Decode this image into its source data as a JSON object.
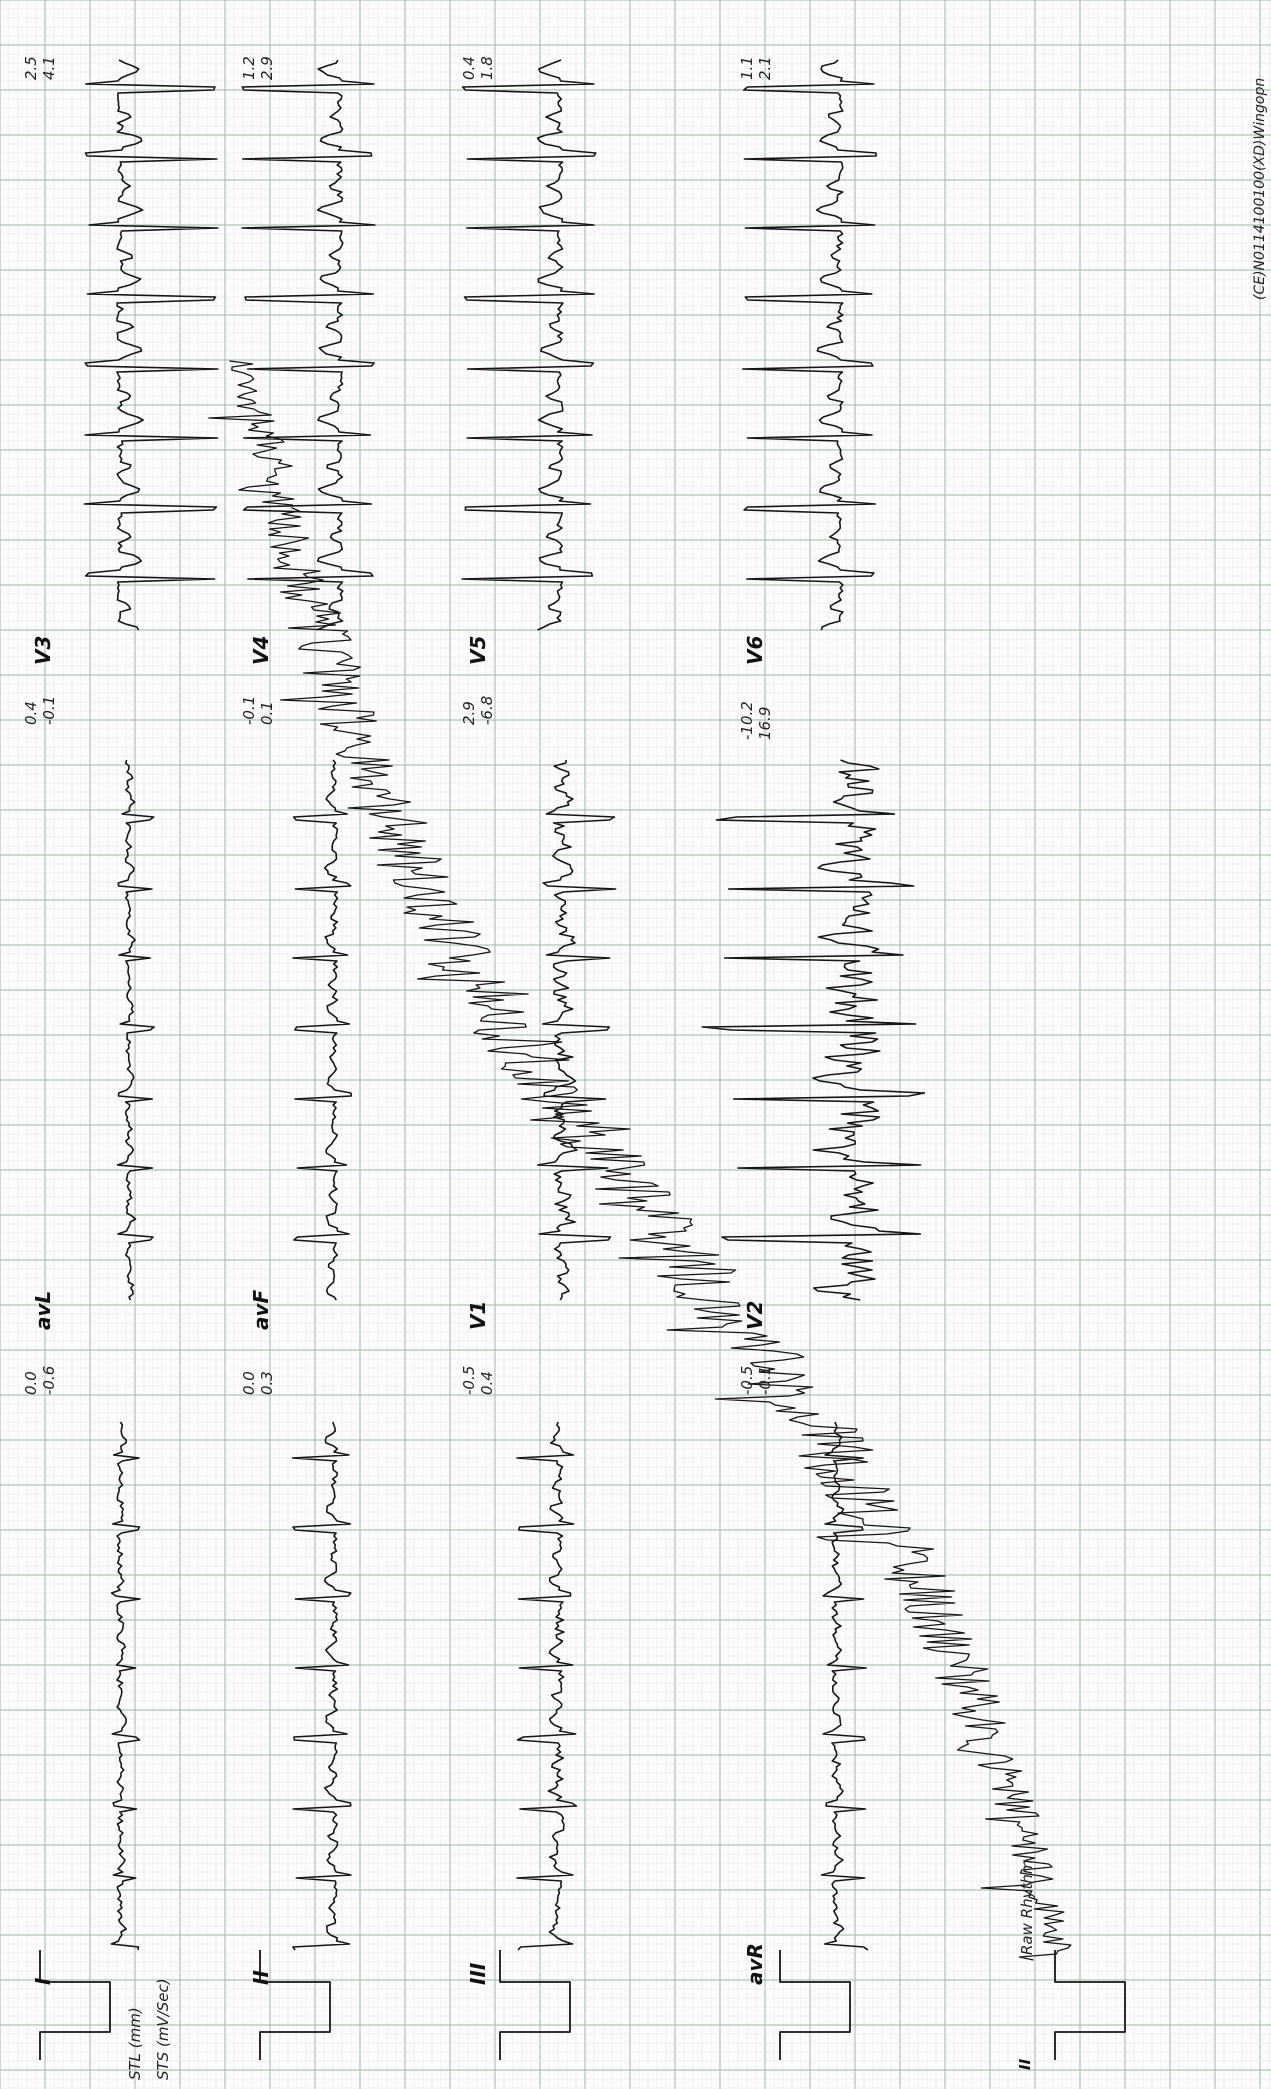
{
  "leads": [
    {
      "id": "I",
      "label": "I",
      "st": [
        "",
        ""
      ]
    },
    {
      "id": "avL",
      "label": "avL",
      "st": [
        "0.0",
        "-0.6"
      ]
    },
    {
      "id": "V3",
      "label": "V3",
      "st": [
        "0.4",
        "-0.1"
      ]
    },
    {
      "id": "II",
      "label": "II",
      "st": [
        "",
        ""
      ]
    },
    {
      "id": "avF",
      "label": "avF",
      "st": [
        "0.0",
        "0.3"
      ]
    },
    {
      "id": "V4",
      "label": "V4",
      "st": [
        "-0.1",
        "0.1"
      ]
    },
    {
      "id": "III",
      "label": "III",
      "st": [
        "",
        ""
      ]
    },
    {
      "id": "V1",
      "label": "V1",
      "st": [
        "-0.5",
        "0.4"
      ]
    },
    {
      "id": "V5",
      "label": "V5",
      "st": [
        "2.9",
        "-6.8"
      ]
    },
    {
      "id": "avR",
      "label": "avR",
      "st": [
        "",
        ""
      ]
    },
    {
      "id": "V2",
      "label": "V2",
      "st": [
        "-0.5",
        "-0.1"
      ]
    },
    {
      "id": "V6",
      "label": "V6",
      "st": [
        "-10.2",
        "16.9"
      ]
    }
  ],
  "right_values": [
    [
      "2.5",
      "4.1"
    ],
    [
      "1.2",
      "2.9"
    ],
    [
      "0.4",
      "1.8"
    ],
    [
      "1.1",
      "2.1"
    ]
  ],
  "legend": {
    "stl": "STL (mm)",
    "sts": "STS (mV/Sec)"
  },
  "rhythm": {
    "lead_label": "II",
    "title": "Raw Rhythm"
  },
  "footer": "(CE)N0114100100(XD)Wingopn"
}
